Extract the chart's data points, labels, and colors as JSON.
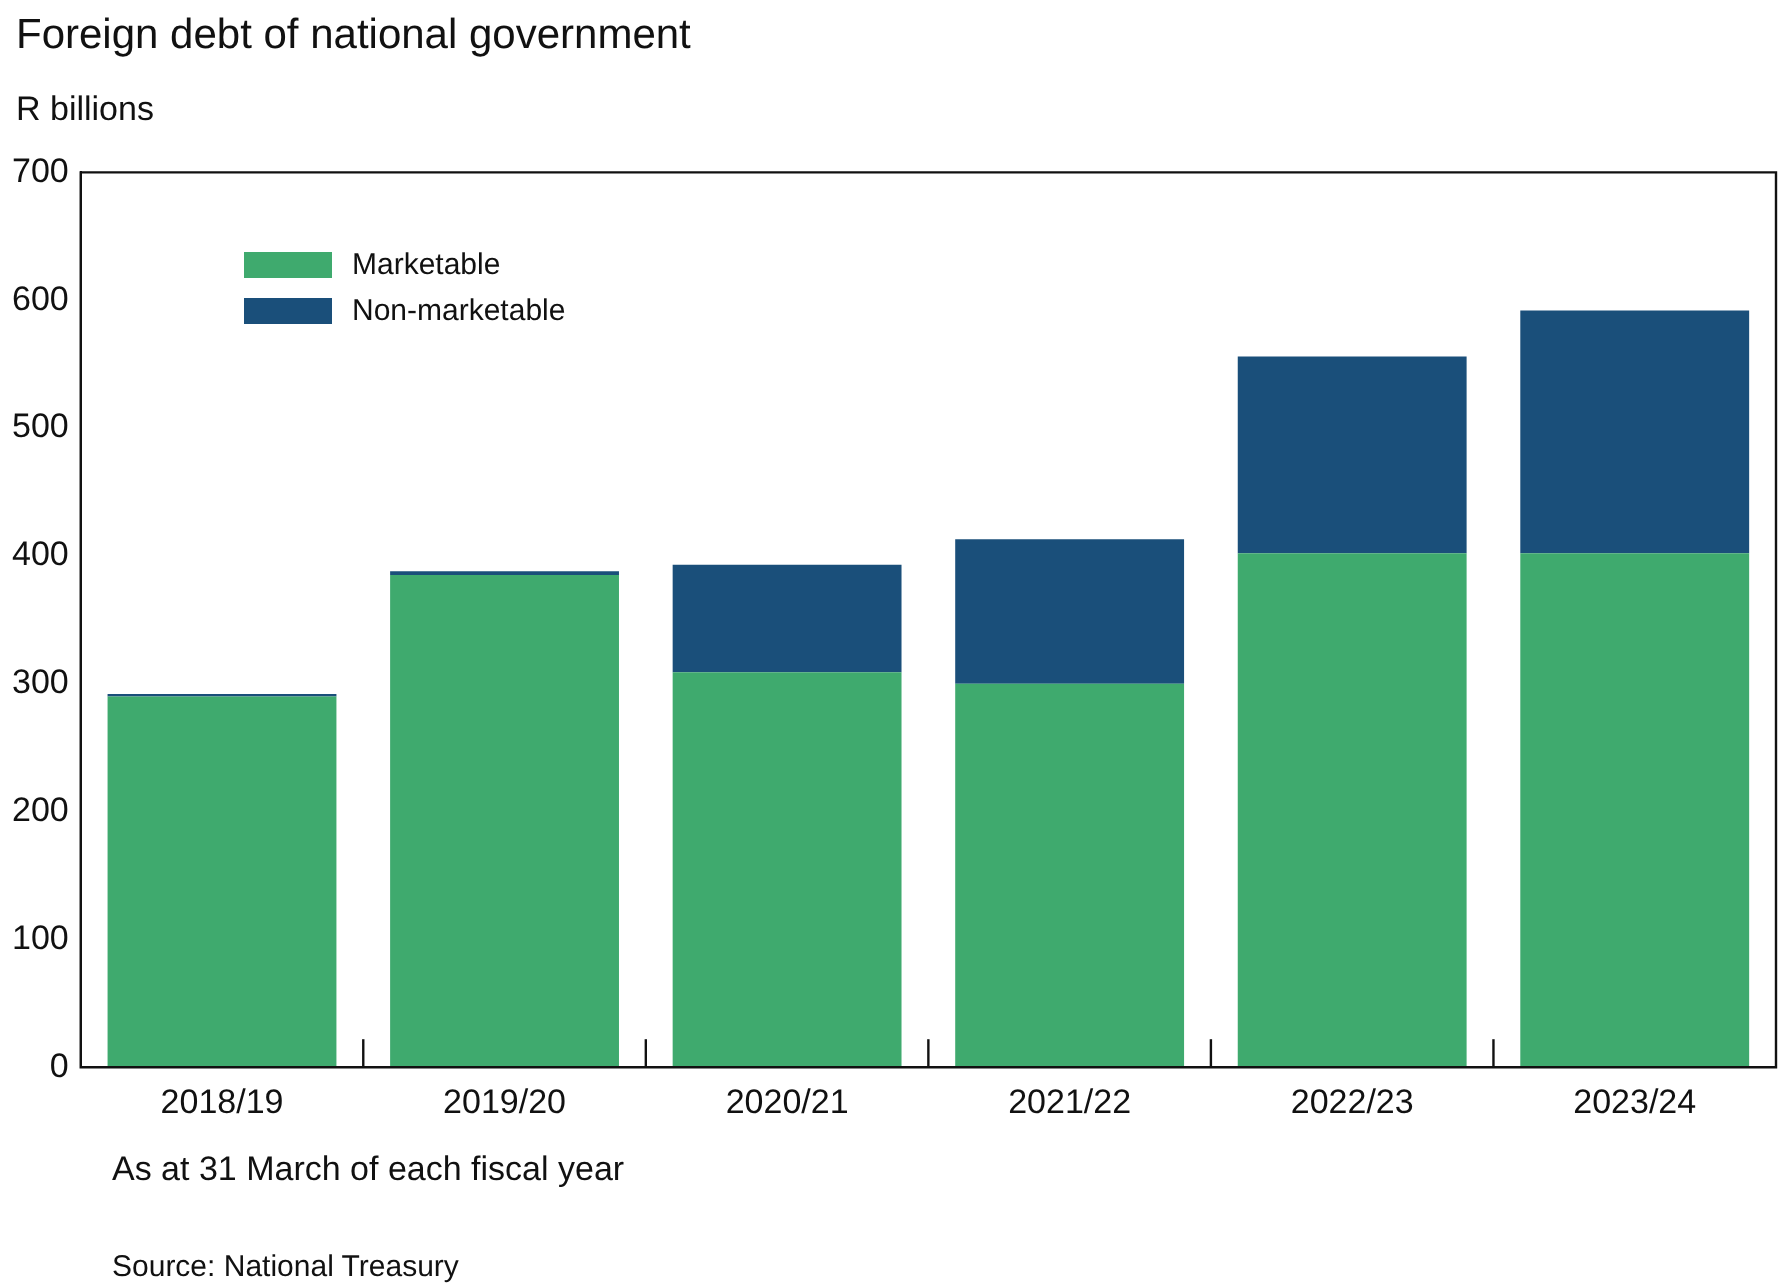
{
  "chart_data": {
    "type": "bar",
    "title": "Foreign debt of national government",
    "ylabel": "R billions",
    "categories": [
      "2018/19",
      "2019/20",
      "2020/21",
      "2021/22",
      "2022/23",
      "2023/24"
    ],
    "stacked": true,
    "series": [
      {
        "name": "Marketable",
        "color": "#3faa6e",
        "values": [
          290,
          385,
          309,
          300,
          402,
          402
        ]
      },
      {
        "name": "Non-marketable",
        "color": "#1a4f7a",
        "values": [
          2,
          3,
          84,
          113,
          154,
          190
        ]
      }
    ],
    "ylim": [
      0,
      700
    ],
    "yticks": [
      0,
      100,
      200,
      300,
      400,
      500,
      600,
      700
    ],
    "grid": false,
    "legend": "top left",
    "annotations": [
      "As at 31 March of each fiscal year",
      "Source: National Treasury"
    ]
  }
}
